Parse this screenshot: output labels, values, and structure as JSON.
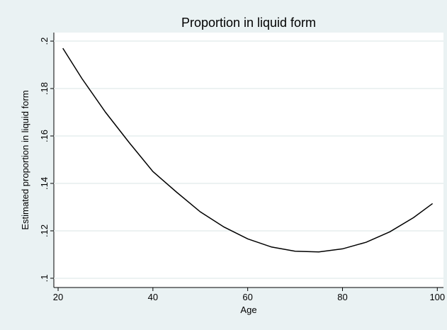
{
  "chart_data": {
    "type": "line",
    "title": "Proportion in liquid form",
    "x_label": "Age",
    "y_label": "Estimated proportion in liquid form",
    "x": [
      21,
      25,
      30,
      35,
      40,
      45,
      50,
      55,
      60,
      65,
      70,
      75,
      80,
      85,
      90,
      95,
      99
    ],
    "series": [
      {
        "color": "#000000",
        "values": [
          0.197,
          0.1843,
          0.17,
          0.1572,
          0.145,
          0.1363,
          0.128,
          0.1216,
          0.1166,
          0.1132,
          0.1114,
          0.1111,
          0.1124,
          0.1152,
          0.1196,
          0.1256,
          0.1315
        ]
      }
    ],
    "xlim": [
      19.1,
      101.3
    ],
    "xticks": [
      20,
      40,
      60,
      80,
      100
    ],
    "ylim": [
      0.0961,
      0.2036
    ],
    "yticks": [
      {
        "value": 0.1,
        "label": ".1"
      },
      {
        "value": 0.12,
        "label": ".12"
      },
      {
        "value": 0.14,
        "label": ".14"
      },
      {
        "value": 0.16,
        "label": ".16"
      },
      {
        "value": 0.18,
        "label": ".18"
      },
      {
        "value": 0.2,
        "label": ".2"
      }
    ],
    "grid": true
  }
}
